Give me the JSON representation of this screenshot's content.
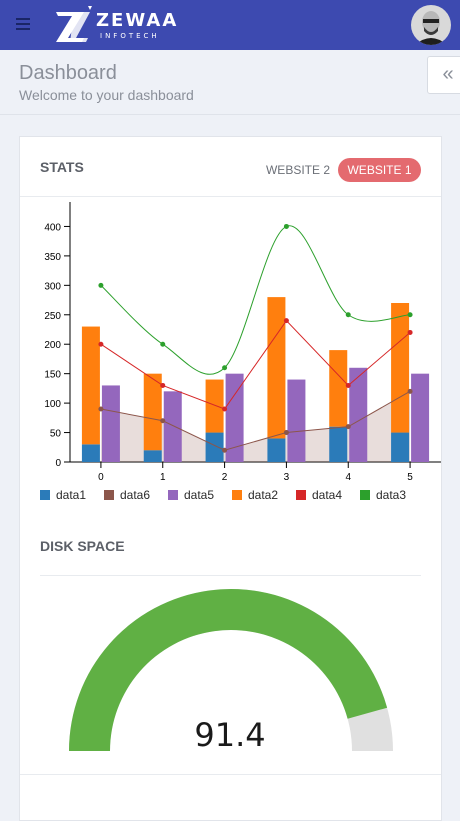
{
  "header": {
    "logo_text": "ZEWAA",
    "logo_sub": "INFOTECH",
    "menu_icon": "hamburger-icon",
    "avatar_icon": "user-avatar"
  },
  "page": {
    "title": "Dashboard",
    "subtitle": "Welcome to your dashboard",
    "collapse_icon": "double-chevron-left-icon",
    "collapse_glyph": "«"
  },
  "stats": {
    "title": "STATS",
    "tabs": [
      {
        "label": "WEBSITE 2",
        "active": false
      },
      {
        "label": "WEBSITE 1",
        "active": true
      }
    ]
  },
  "chart_data": {
    "type": "bar",
    "x": [
      0,
      1,
      2,
      3,
      4,
      5
    ],
    "ylim": [
      0,
      450
    ],
    "yticks": [
      0,
      50,
      100,
      150,
      200,
      250,
      300,
      350,
      400
    ],
    "series": [
      {
        "name": "data1",
        "type": "bar",
        "stack": "A",
        "color": "#2b7bb9",
        "values": [
          30,
          20,
          50,
          40,
          60,
          50
        ]
      },
      {
        "name": "data2",
        "type": "bar",
        "stack": "A",
        "color": "#ff7f0e",
        "values": [
          200,
          130,
          90,
          240,
          130,
          220
        ]
      },
      {
        "name": "data5",
        "type": "bar",
        "color": "#9467bd",
        "values": [
          130,
          120,
          150,
          140,
          160,
          150
        ]
      },
      {
        "name": "data6",
        "type": "area",
        "color": "#8c564b",
        "values": [
          90,
          70,
          20,
          50,
          60,
          120
        ]
      },
      {
        "name": "data4",
        "type": "line",
        "color": "#d62728",
        "values": [
          200,
          130,
          90,
          240,
          130,
          220
        ]
      },
      {
        "name": "data3",
        "type": "spline",
        "color": "#2ca02c",
        "values": [
          300,
          200,
          160,
          400,
          250,
          250
        ]
      }
    ],
    "legend_order": [
      "data1",
      "data6",
      "data5",
      "data2",
      "data4",
      "data3"
    ],
    "legend_position": "bottom"
  },
  "disk": {
    "title": "DISK SPACE",
    "gauge": {
      "value": 91.4,
      "display": "91.4",
      "max": 100,
      "fill_color": "#60b044",
      "track_color": "#e0e0e0"
    }
  }
}
